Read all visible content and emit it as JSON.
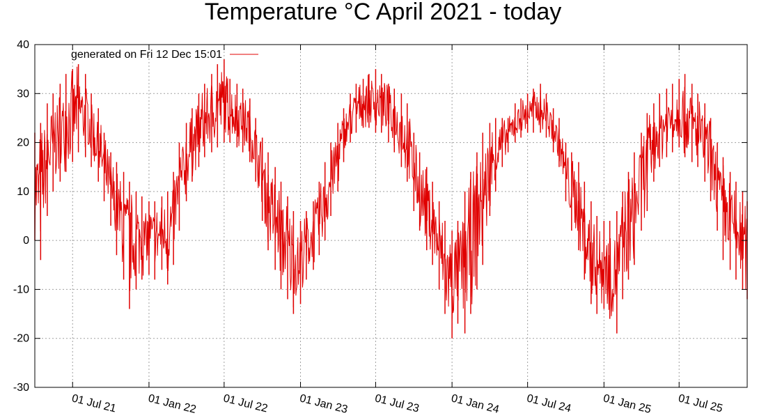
{
  "chart_data": {
    "type": "line",
    "title": "Temperature °C April 2021 - today",
    "legend": {
      "label": "generated on Fri 12 Dec 15:01",
      "placement": "top-left",
      "color": "#e00000"
    },
    "series_color": "#e00000",
    "grid": true,
    "ylim": [
      -30,
      40
    ],
    "yticks": [
      40,
      30,
      20,
      10,
      0,
      -10,
      -20,
      -30
    ],
    "xlim": [
      "2021-04-01",
      "2025-12-12"
    ],
    "xticks": [
      {
        "date": "2021-07-01",
        "label": "01 Jul 21"
      },
      {
        "date": "2022-01-01",
        "label": "01 Jan 22"
      },
      {
        "date": "2022-07-01",
        "label": "01 Jul 22"
      },
      {
        "date": "2023-01-01",
        "label": "01 Jan 23"
      },
      {
        "date": "2023-07-01",
        "label": "01 Jul 23"
      },
      {
        "date": "2024-01-01",
        "label": "01 Jan 24"
      },
      {
        "date": "2024-07-01",
        "label": "01 Jul 24"
      },
      {
        "date": "2025-01-01",
        "label": "01 Jan 25"
      },
      {
        "date": "2025-07-01",
        "label": "01 Jul 25"
      }
    ],
    "series": [
      {
        "name": "generated on Fri 12 Dec 15:01",
        "x": [
          "2021-04-01",
          "2021-04-15",
          "2021-05-01",
          "2021-05-15",
          "2021-06-01",
          "2021-06-15",
          "2021-07-01",
          "2021-07-15",
          "2021-08-01",
          "2021-08-15",
          "2021-09-01",
          "2021-09-15",
          "2021-10-01",
          "2021-10-15",
          "2021-11-01",
          "2021-11-15",
          "2021-12-01",
          "2021-12-15",
          "2022-01-01",
          "2022-01-15",
          "2022-02-01",
          "2022-02-15",
          "2022-03-01",
          "2022-03-15",
          "2022-04-01",
          "2022-04-15",
          "2022-05-01",
          "2022-05-15",
          "2022-06-01",
          "2022-06-15",
          "2022-07-01",
          "2022-07-15",
          "2022-08-01",
          "2022-08-15",
          "2022-09-01",
          "2022-09-15",
          "2022-10-01",
          "2022-10-15",
          "2022-11-01",
          "2022-11-15",
          "2022-12-01",
          "2022-12-15",
          "2023-01-01",
          "2023-01-15",
          "2023-02-01",
          "2023-02-15",
          "2023-03-01",
          "2023-03-15",
          "2023-04-01",
          "2023-04-15",
          "2023-05-01",
          "2023-05-15",
          "2023-06-01",
          "2023-06-15",
          "2023-07-01",
          "2023-07-15",
          "2023-08-01",
          "2023-08-15",
          "2023-09-01",
          "2023-09-15",
          "2023-10-01",
          "2023-10-15",
          "2023-11-01",
          "2023-11-15",
          "2023-12-01",
          "2023-12-15",
          "2024-01-01",
          "2024-01-15",
          "2024-02-01",
          "2024-02-15",
          "2024-03-01",
          "2024-03-15",
          "2024-04-01",
          "2024-04-15",
          "2024-05-01",
          "2024-05-15",
          "2024-06-01",
          "2024-06-15",
          "2024-07-01",
          "2024-07-15",
          "2024-08-01",
          "2024-08-15",
          "2024-09-01",
          "2024-09-15",
          "2024-10-01",
          "2024-10-15",
          "2024-11-01",
          "2024-11-15",
          "2024-12-01",
          "2024-12-15",
          "2025-01-01",
          "2025-01-15",
          "2025-02-01",
          "2025-02-15",
          "2025-03-01",
          "2025-03-15",
          "2025-04-01",
          "2025-04-15",
          "2025-05-01",
          "2025-05-15",
          "2025-06-01",
          "2025-06-15",
          "2025-07-01",
          "2025-07-15",
          "2025-08-01",
          "2025-08-15",
          "2025-09-01",
          "2025-09-15",
          "2025-10-01",
          "2025-10-15",
          "2025-11-01",
          "2025-11-15",
          "2025-12-01",
          "2025-12-12"
        ],
        "max": [
          22,
          24,
          28,
          30,
          32,
          34,
          35,
          36,
          34,
          30,
          27,
          22,
          18,
          16,
          14,
          12,
          10,
          9,
          8,
          8,
          9,
          10,
          14,
          20,
          24,
          27,
          30,
          32,
          34,
          36,
          37,
          33,
          32,
          31,
          29,
          25,
          21,
          18,
          15,
          12,
          9,
          6,
          4,
          6,
          8,
          12,
          16,
          20,
          24,
          27,
          30,
          32,
          33,
          34,
          35,
          34,
          32,
          31,
          30,
          28,
          22,
          18,
          15,
          12,
          8,
          4,
          2,
          4,
          10,
          14,
          18,
          22,
          24,
          25,
          25,
          25,
          28,
          29,
          30,
          31,
          32,
          30,
          27,
          25,
          20,
          18,
          16,
          12,
          8,
          5,
          4,
          4,
          6,
          10,
          14,
          18,
          22,
          26,
          28,
          30,
          31,
          32,
          33,
          34,
          32,
          30,
          28,
          25,
          20,
          17,
          14,
          12,
          10,
          8
        ],
        "min": [
          0,
          -4,
          5,
          10,
          12,
          14,
          16,
          18,
          17,
          15,
          12,
          8,
          3,
          -3,
          -8,
          -14,
          -10,
          -8,
          -7,
          -8,
          -6,
          -9,
          -5,
          2,
          8,
          12,
          15,
          17,
          18,
          19,
          20,
          20,
          19,
          18,
          16,
          12,
          4,
          -2,
          -6,
          -10,
          -12,
          -15,
          -13,
          -8,
          -6,
          -3,
          0,
          5,
          10,
          16,
          20,
          22,
          23,
          23,
          22,
          22,
          20,
          18,
          15,
          12,
          6,
          2,
          -2,
          -5,
          -10,
          -15,
          -20,
          -17,
          -19,
          -15,
          -10,
          -5,
          5,
          10,
          15,
          18,
          20,
          21,
          22,
          22,
          22,
          21,
          18,
          15,
          8,
          2,
          -2,
          -8,
          -13,
          -15,
          -14,
          -16,
          -19,
          -12,
          -8,
          -5,
          2,
          6,
          12,
          15,
          17,
          18,
          19,
          17,
          16,
          15,
          12,
          8,
          2,
          -4,
          -6,
          -8,
          -10,
          -12
        ]
      }
    ]
  }
}
